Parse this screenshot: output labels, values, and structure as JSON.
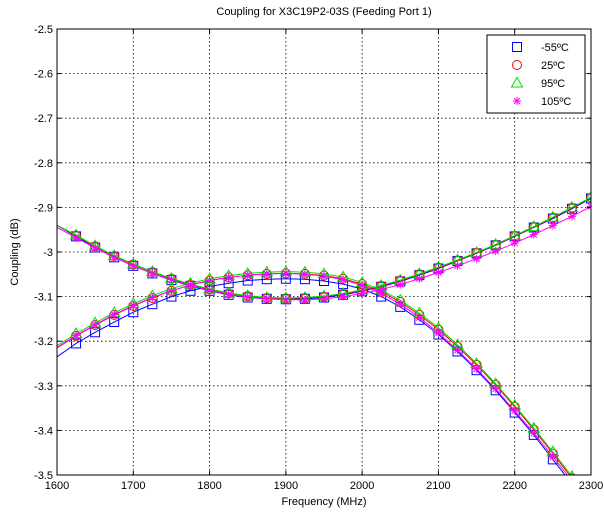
{
  "chart_data": {
    "type": "line",
    "title": "Coupling for X3C19P2-03S (Feeding Port 1)",
    "xlabel": "Frequency (MHz)",
    "ylabel": "Coupling (dB)",
    "xlim": [
      1600,
      2300
    ],
    "ylim": [
      -3.5,
      -2.5
    ],
    "xticks": [
      1600,
      1700,
      1800,
      1900,
      2000,
      2100,
      2200,
      2300
    ],
    "yticks": [
      -3.5,
      -3.4,
      -3.3,
      -3.2,
      -3.1,
      -3.0,
      -2.9,
      -2.8,
      -2.7,
      -2.6,
      -2.5
    ],
    "ytick_labels": [
      "-3.5",
      "-3.4",
      "-3.3",
      "-3.2",
      "-3.1",
      "-3",
      "-2.9",
      "-2.8",
      "-2.7",
      "-2.6",
      "-2.5"
    ],
    "grid": true,
    "legend_position": "top-right",
    "x": [
      1600,
      1625,
      1650,
      1675,
      1700,
      1725,
      1750,
      1775,
      1800,
      1825,
      1850,
      1875,
      1900,
      1925,
      1950,
      1975,
      2000,
      2025,
      2050,
      2075,
      2100,
      2125,
      2150,
      2175,
      2200,
      2225,
      2250,
      2275,
      2300
    ],
    "series": [
      {
        "name": "-55ºC",
        "color": "#0000ff",
        "marker": "square",
        "rising": [
          -3.235,
          -3.205,
          -3.18,
          -3.157,
          -3.135,
          -3.117,
          -3.1,
          -3.087,
          -3.077,
          -3.07,
          -3.064,
          -3.061,
          -3.06,
          -3.061,
          -3.065,
          -3.072,
          -3.083,
          -3.1,
          -3.123,
          -3.152,
          -3.185,
          -3.223,
          -3.265,
          -3.31,
          -3.36,
          -3.41,
          -3.465,
          -3.52,
          -3.575
        ],
        "falling": [
          -2.94,
          -2.965,
          -2.99,
          -3.012,
          -3.031,
          -3.048,
          -3.063,
          -3.076,
          -3.087,
          -3.096,
          -3.102,
          -3.105,
          -3.106,
          -3.105,
          -3.102,
          -3.096,
          -3.088,
          -3.078,
          -3.066,
          -3.052,
          -3.037,
          -3.02,
          -3.003,
          -2.985,
          -2.965,
          -2.945,
          -2.925,
          -2.903,
          -2.88
        ]
      },
      {
        "name": "25ºC",
        "color": "#ff0000",
        "marker": "circle",
        "rising": [
          -3.215,
          -3.188,
          -3.164,
          -3.141,
          -3.121,
          -3.103,
          -3.087,
          -3.074,
          -3.064,
          -3.057,
          -3.052,
          -3.049,
          -3.048,
          -3.049,
          -3.053,
          -3.06,
          -3.072,
          -3.089,
          -3.112,
          -3.141,
          -3.174,
          -3.212,
          -3.253,
          -3.298,
          -3.347,
          -3.398,
          -3.452,
          -3.507,
          -3.562
        ],
        "falling": [
          -2.94,
          -2.963,
          -2.987,
          -3.009,
          -3.028,
          -3.045,
          -3.06,
          -3.073,
          -3.084,
          -3.093,
          -3.099,
          -3.103,
          -3.104,
          -3.103,
          -3.1,
          -3.094,
          -3.086,
          -3.076,
          -3.064,
          -3.05,
          -3.035,
          -3.019,
          -3.002,
          -2.984,
          -2.964,
          -2.944,
          -2.923,
          -2.901,
          -2.878
        ]
      },
      {
        "name": "95ºC",
        "color": "#00dd00",
        "marker": "triangle",
        "rising": [
          -3.21,
          -3.183,
          -3.159,
          -3.136,
          -3.116,
          -3.098,
          -3.082,
          -3.07,
          -3.06,
          -3.053,
          -3.048,
          -3.045,
          -3.044,
          -3.045,
          -3.049,
          -3.056,
          -3.068,
          -3.085,
          -3.108,
          -3.137,
          -3.17,
          -3.208,
          -3.25,
          -3.295,
          -3.344,
          -3.395,
          -3.448,
          -3.503,
          -3.558
        ],
        "falling": [
          -2.94,
          -2.962,
          -2.986,
          -3.008,
          -3.027,
          -3.044,
          -3.059,
          -3.072,
          -3.083,
          -3.092,
          -3.098,
          -3.102,
          -3.103,
          -3.102,
          -3.099,
          -3.093,
          -3.085,
          -3.075,
          -3.063,
          -3.049,
          -3.034,
          -3.018,
          -3.001,
          -2.983,
          -2.963,
          -2.943,
          -2.922,
          -2.9,
          -2.877
        ]
      },
      {
        "name": "105ºC",
        "color": "#ff00ff",
        "marker": "asterisk",
        "rising": [
          -3.214,
          -3.187,
          -3.163,
          -3.14,
          -3.12,
          -3.102,
          -3.087,
          -3.074,
          -3.064,
          -3.057,
          -3.052,
          -3.049,
          -3.048,
          -3.05,
          -3.054,
          -3.062,
          -3.075,
          -3.093,
          -3.117,
          -3.147,
          -3.181,
          -3.22,
          -3.262,
          -3.307,
          -3.356,
          -3.406,
          -3.459,
          -3.513,
          -3.567
        ],
        "falling": [
          -2.945,
          -2.968,
          -2.991,
          -3.012,
          -3.031,
          -3.048,
          -3.062,
          -3.075,
          -3.086,
          -3.095,
          -3.101,
          -3.105,
          -3.107,
          -3.107,
          -3.105,
          -3.1,
          -3.093,
          -3.084,
          -3.073,
          -3.06,
          -3.046,
          -3.031,
          -3.015,
          -2.998,
          -2.98,
          -2.961,
          -2.941,
          -2.92,
          -2.898
        ]
      }
    ]
  }
}
